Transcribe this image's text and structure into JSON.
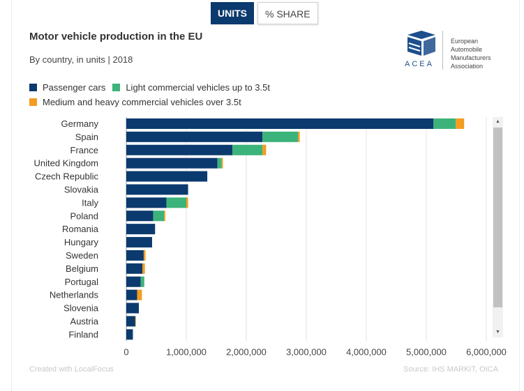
{
  "tabs": {
    "units_label": "UNITS",
    "share_label": "% SHARE"
  },
  "header": {
    "title": "Motor vehicle production in the EU",
    "subtitle": "By country, in units | 2018"
  },
  "logo": {
    "lines": [
      "European",
      "Automobile",
      "Manufacturers",
      "Association"
    ],
    "word": "ACEA"
  },
  "footer": {
    "credit": "Created with LocalFocus",
    "source": "Source: IHS MARKIT, OICA"
  },
  "colors": {
    "passenger": "#0b3a6e",
    "lcv": "#3cb37a",
    "heavy": "#f39c20",
    "brand": "#1d4f8c"
  },
  "scrollbar": {
    "up_icon": "▲",
    "down_icon": "▼"
  },
  "chart_data": {
    "type": "bar",
    "orientation": "horizontal",
    "stacked": true,
    "categories": [
      "Germany",
      "Spain",
      "France",
      "United Kingdom",
      "Czech Republic",
      "Slovakia",
      "Italy",
      "Poland",
      "Romania",
      "Hungary",
      "Sweden",
      "Belgium",
      "Portugal",
      "Netherlands",
      "Slovenia",
      "Austria",
      "Finland"
    ],
    "series": [
      {
        "name": "Passenger cars",
        "color": "#0b3a6e",
        "values": [
          5120000,
          2270000,
          1770000,
          1520000,
          1350000,
          1030000,
          670000,
          450000,
          480000,
          430000,
          290000,
          270000,
          240000,
          180000,
          210000,
          150000,
          110000
        ]
      },
      {
        "name": "Light commercial vehicles up to 3.5t",
        "color": "#3cb37a",
        "values": [
          370000,
          590000,
          500000,
          70000,
          0,
          0,
          330000,
          180000,
          0,
          0,
          0,
          0,
          60000,
          0,
          0,
          0,
          0
        ]
      },
      {
        "name": "Medium and heavy commercial vehicles over 3.5t",
        "color": "#f39c20",
        "values": [
          140000,
          30000,
          60000,
          20000,
          0,
          0,
          30000,
          20000,
          0,
          0,
          30000,
          40000,
          0,
          80000,
          0,
          10000,
          0
        ]
      }
    ],
    "xlim": [
      0,
      6500000
    ],
    "xticks": [
      0,
      1000000,
      2000000,
      3000000,
      4000000,
      5000000,
      6000000
    ],
    "xtick_labels": [
      "0",
      "1,000,000",
      "2,000,000",
      "3,000,000",
      "4,000,000",
      "5,000,000",
      "6,000,000"
    ],
    "xlabel": "",
    "ylabel": "",
    "grid": true,
    "legend_position": "top-left"
  }
}
